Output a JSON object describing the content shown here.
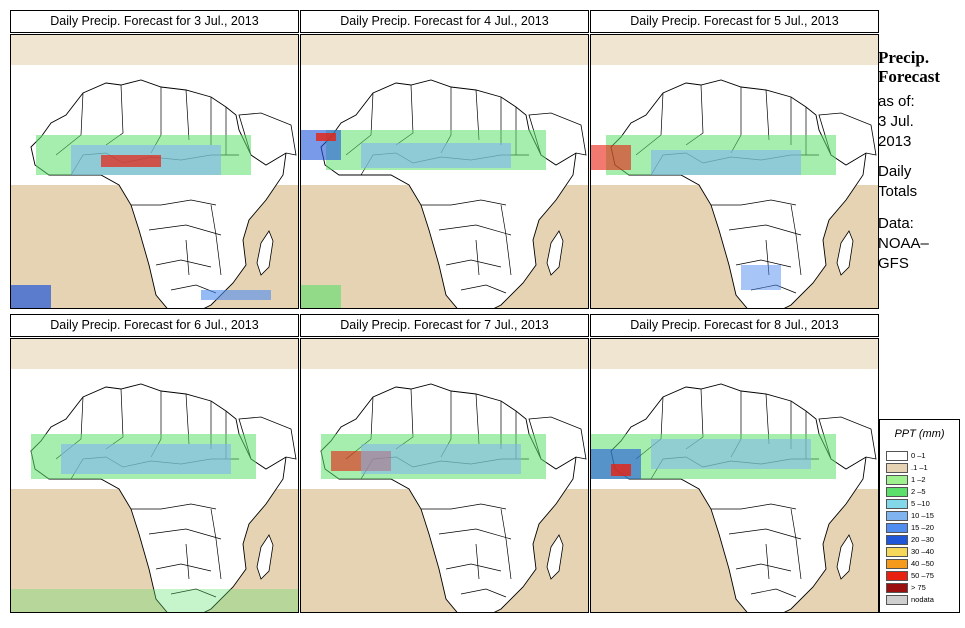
{
  "panels": [
    {
      "title": "Daily Precip. Forecast for  3 Jul., 2013"
    },
    {
      "title": "Daily Precip. Forecast for  4 Jul., 2013"
    },
    {
      "title": "Daily Precip. Forecast for  5 Jul., 2013"
    },
    {
      "title": "Daily Precip. Forecast for  6 Jul., 2013"
    },
    {
      "title": "Daily Precip. Forecast for  7 Jul., 2013"
    },
    {
      "title": "Daily Precip. Forecast for  8 Jul., 2013"
    }
  ],
  "side": {
    "heading1": "Precip.",
    "heading2": "Forecast",
    "asof": "as of:",
    "date1": "3 Jul.",
    "date2": "2013",
    "daily1": "Daily",
    "daily2": "Totals",
    "data1": "Data:",
    "data2": "NOAA–",
    "data3": "GFS"
  },
  "legend": {
    "title": "PPT (mm)",
    "items": [
      {
        "label": "0 –1",
        "color": "#ffffff"
      },
      {
        "label": ".1 –1",
        "color": "#e6d3b3"
      },
      {
        "label": "1 –2",
        "color": "#9ff08f"
      },
      {
        "label": "2 –5",
        "color": "#5be06b"
      },
      {
        "label": "5 –10",
        "color": "#82d8e8"
      },
      {
        "label": "10 –15",
        "color": "#7fb4f0"
      },
      {
        "label": "15 –20",
        "color": "#4f8ef0"
      },
      {
        "label": "20 –30",
        "color": "#1f57d8"
      },
      {
        "label": "30 –40",
        "color": "#f5d85a"
      },
      {
        "label": "40 –50",
        "color": "#f59a1a"
      },
      {
        "label": "50 –75",
        "color": "#e8200f"
      },
      {
        "label": "> 75",
        "color": "#9a1010"
      },
      {
        "label": "nodata",
        "color": "#cfcfcf"
      }
    ]
  }
}
